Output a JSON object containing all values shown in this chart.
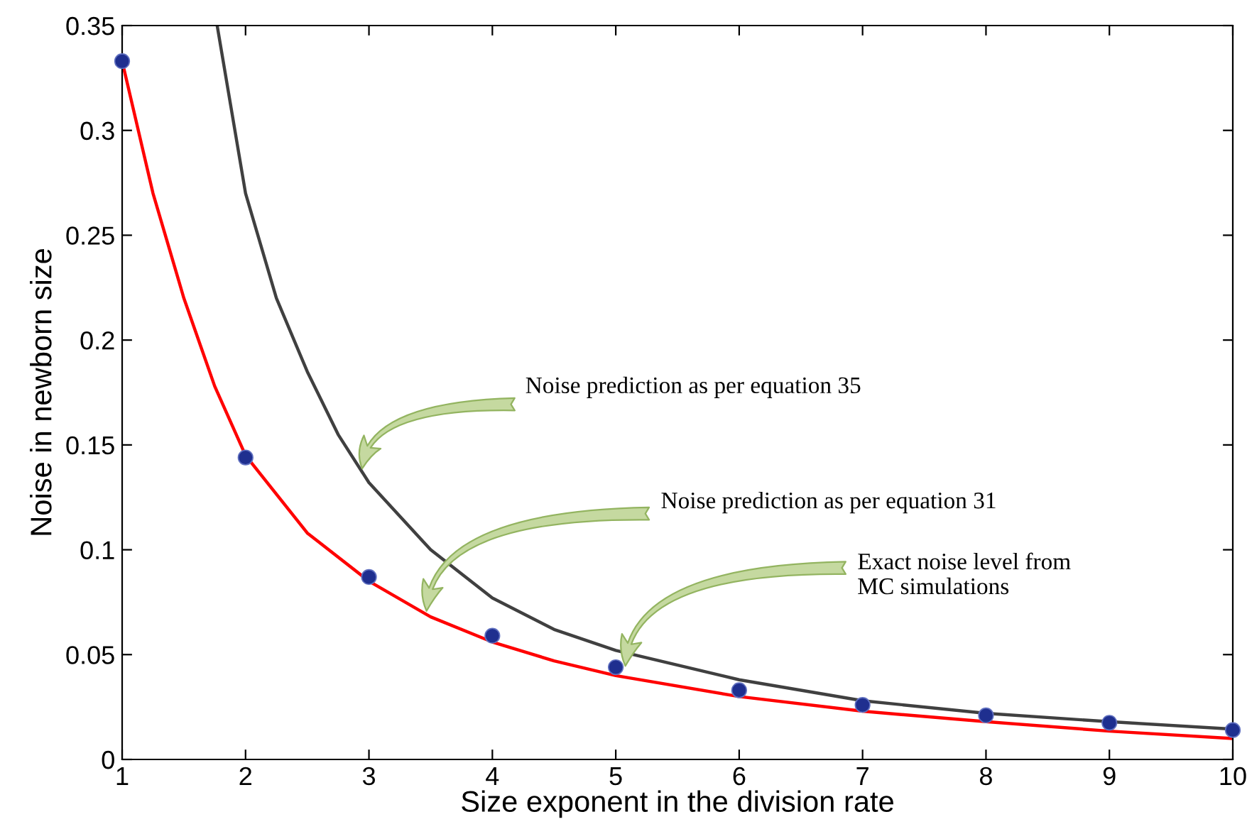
{
  "chart_data": {
    "type": "line",
    "xlabel": "Size exponent in the division rate",
    "ylabel": "Noise in newborn size",
    "xlim": [
      1,
      10
    ],
    "ylim": [
      0,
      0.35
    ],
    "xticks": [
      1,
      2,
      3,
      4,
      5,
      6,
      7,
      8,
      9,
      10
    ],
    "yticks": [
      0,
      0.05,
      0.1,
      0.15,
      0.2,
      0.25,
      0.3,
      0.35
    ],
    "grid": false,
    "legend": false,
    "series": [
      {
        "color": "#ff0000",
        "x": [
          1,
          1.25,
          1.5,
          1.75,
          2,
          2.5,
          3,
          3.5,
          4,
          4.5,
          5,
          6,
          7,
          8,
          9,
          10
        ],
        "values": [
          0.333,
          0.27,
          0.22,
          0.178,
          0.145,
          0.108,
          0.085,
          0.068,
          0.056,
          0.047,
          0.04,
          0.03,
          0.023,
          0.018,
          0.0135,
          0.01
        ]
      },
      {
        "color": "#404040",
        "x": [
          1.77,
          2,
          2.25,
          2.5,
          2.75,
          3,
          3.5,
          4,
          4.5,
          5,
          6,
          7,
          8,
          9,
          10
        ],
        "values": [
          0.35,
          0.27,
          0.22,
          0.185,
          0.155,
          0.132,
          0.1,
          0.077,
          0.062,
          0.052,
          0.038,
          0.028,
          0.022,
          0.018,
          0.0145
        ]
      },
      {
        "type": "scatter",
        "color": "#1f2f8f",
        "marker": "circle",
        "x": [
          1,
          2,
          3,
          4,
          5,
          6,
          7,
          8,
          9,
          10
        ],
        "values": [
          0.333,
          0.144,
          0.087,
          0.059,
          0.044,
          0.033,
          0.026,
          0.021,
          0.0175,
          0.014
        ]
      }
    ],
    "annotations": [
      "Noise prediction as per equation 35",
      "Noise prediction as per equation 31",
      "Exact noise level from\nMC simulations"
    ]
  }
}
